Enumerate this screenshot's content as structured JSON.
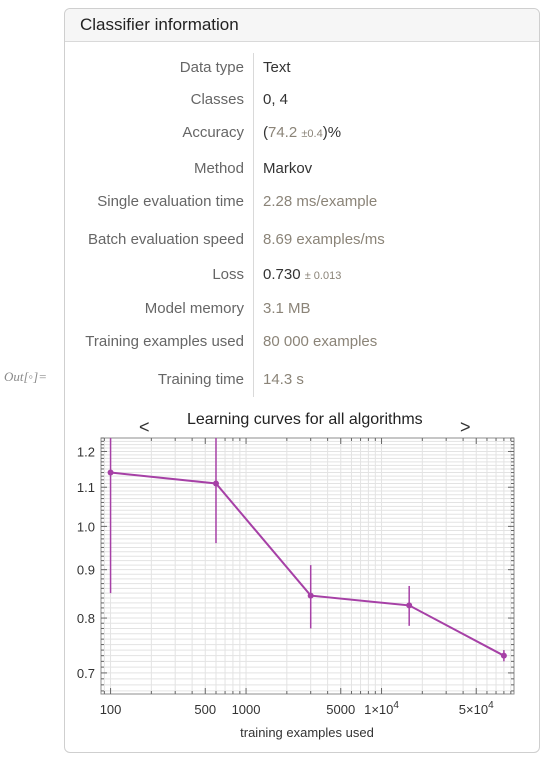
{
  "output_label": "Out[◦]=",
  "panel": {
    "title": "Classifier information"
  },
  "rows": [
    {
      "label": "Data type",
      "value": "Text"
    },
    {
      "label": "Classes",
      "value": "0, 4"
    },
    {
      "label": "Accuracy",
      "value_open": "(",
      "value_main": "74.2",
      "value_pm": "±0.4",
      "value_close": ")%"
    },
    {
      "label": "Method",
      "value": "Markov"
    },
    {
      "label": "Single evaluation time",
      "value": "2.28 ms/example"
    },
    {
      "label": "Batch evaluation speed",
      "value": "8.69 examples/ms"
    },
    {
      "label": "Loss",
      "value_main": "0.730",
      "value_pm": "± 0.013"
    },
    {
      "label": "Model memory",
      "value": "3.1 MB"
    },
    {
      "label": "Training examples used",
      "value": "80 000 examples"
    },
    {
      "label": "Training time",
      "value": "14.3 s"
    }
  ],
  "nav": {
    "prev": "<",
    "next": ">"
  },
  "colors": {
    "series": "#a640a6",
    "grid": "#e3e3e3",
    "frame": "#8c8c8c"
  },
  "chart_data": {
    "type": "line",
    "title": "Learning curves for all algorithms",
    "xlabel": "training examples used",
    "x_scale": "log",
    "y_scale": "log",
    "xlim": [
      85,
      95000
    ],
    "ylim": [
      0.665,
      1.24
    ],
    "x_ticks": [
      {
        "value": 100,
        "label": "100"
      },
      {
        "value": 500,
        "label": "500"
      },
      {
        "value": 1000,
        "label": "1000"
      },
      {
        "value": 5000,
        "label": "5000"
      },
      {
        "value": 10000,
        "label": "1×10",
        "sup": "4"
      },
      {
        "value": 50000,
        "label": "5×10",
        "sup": "4"
      }
    ],
    "y_ticks": [
      {
        "value": 0.7,
        "label": "0.7"
      },
      {
        "value": 0.8,
        "label": "0.8"
      },
      {
        "value": 0.9,
        "label": "0.9"
      },
      {
        "value": 1.0,
        "label": "1.0"
      },
      {
        "value": 1.1,
        "label": "1.1"
      },
      {
        "value": 1.2,
        "label": "1.2"
      }
    ],
    "grid": true,
    "series": [
      {
        "points": [
          {
            "x": 100,
            "y": 1.14,
            "lo": 0.85,
            "hi": 1.26
          },
          {
            "x": 600,
            "y": 1.11,
            "lo": 0.96,
            "hi": 1.26
          },
          {
            "x": 3000,
            "y": 0.845,
            "lo": 0.78,
            "hi": 0.91
          },
          {
            "x": 16000,
            "y": 0.825,
            "lo": 0.785,
            "hi": 0.865
          },
          {
            "x": 80000,
            "y": 0.73,
            "lo": 0.72,
            "hi": 0.74
          }
        ]
      }
    ]
  }
}
